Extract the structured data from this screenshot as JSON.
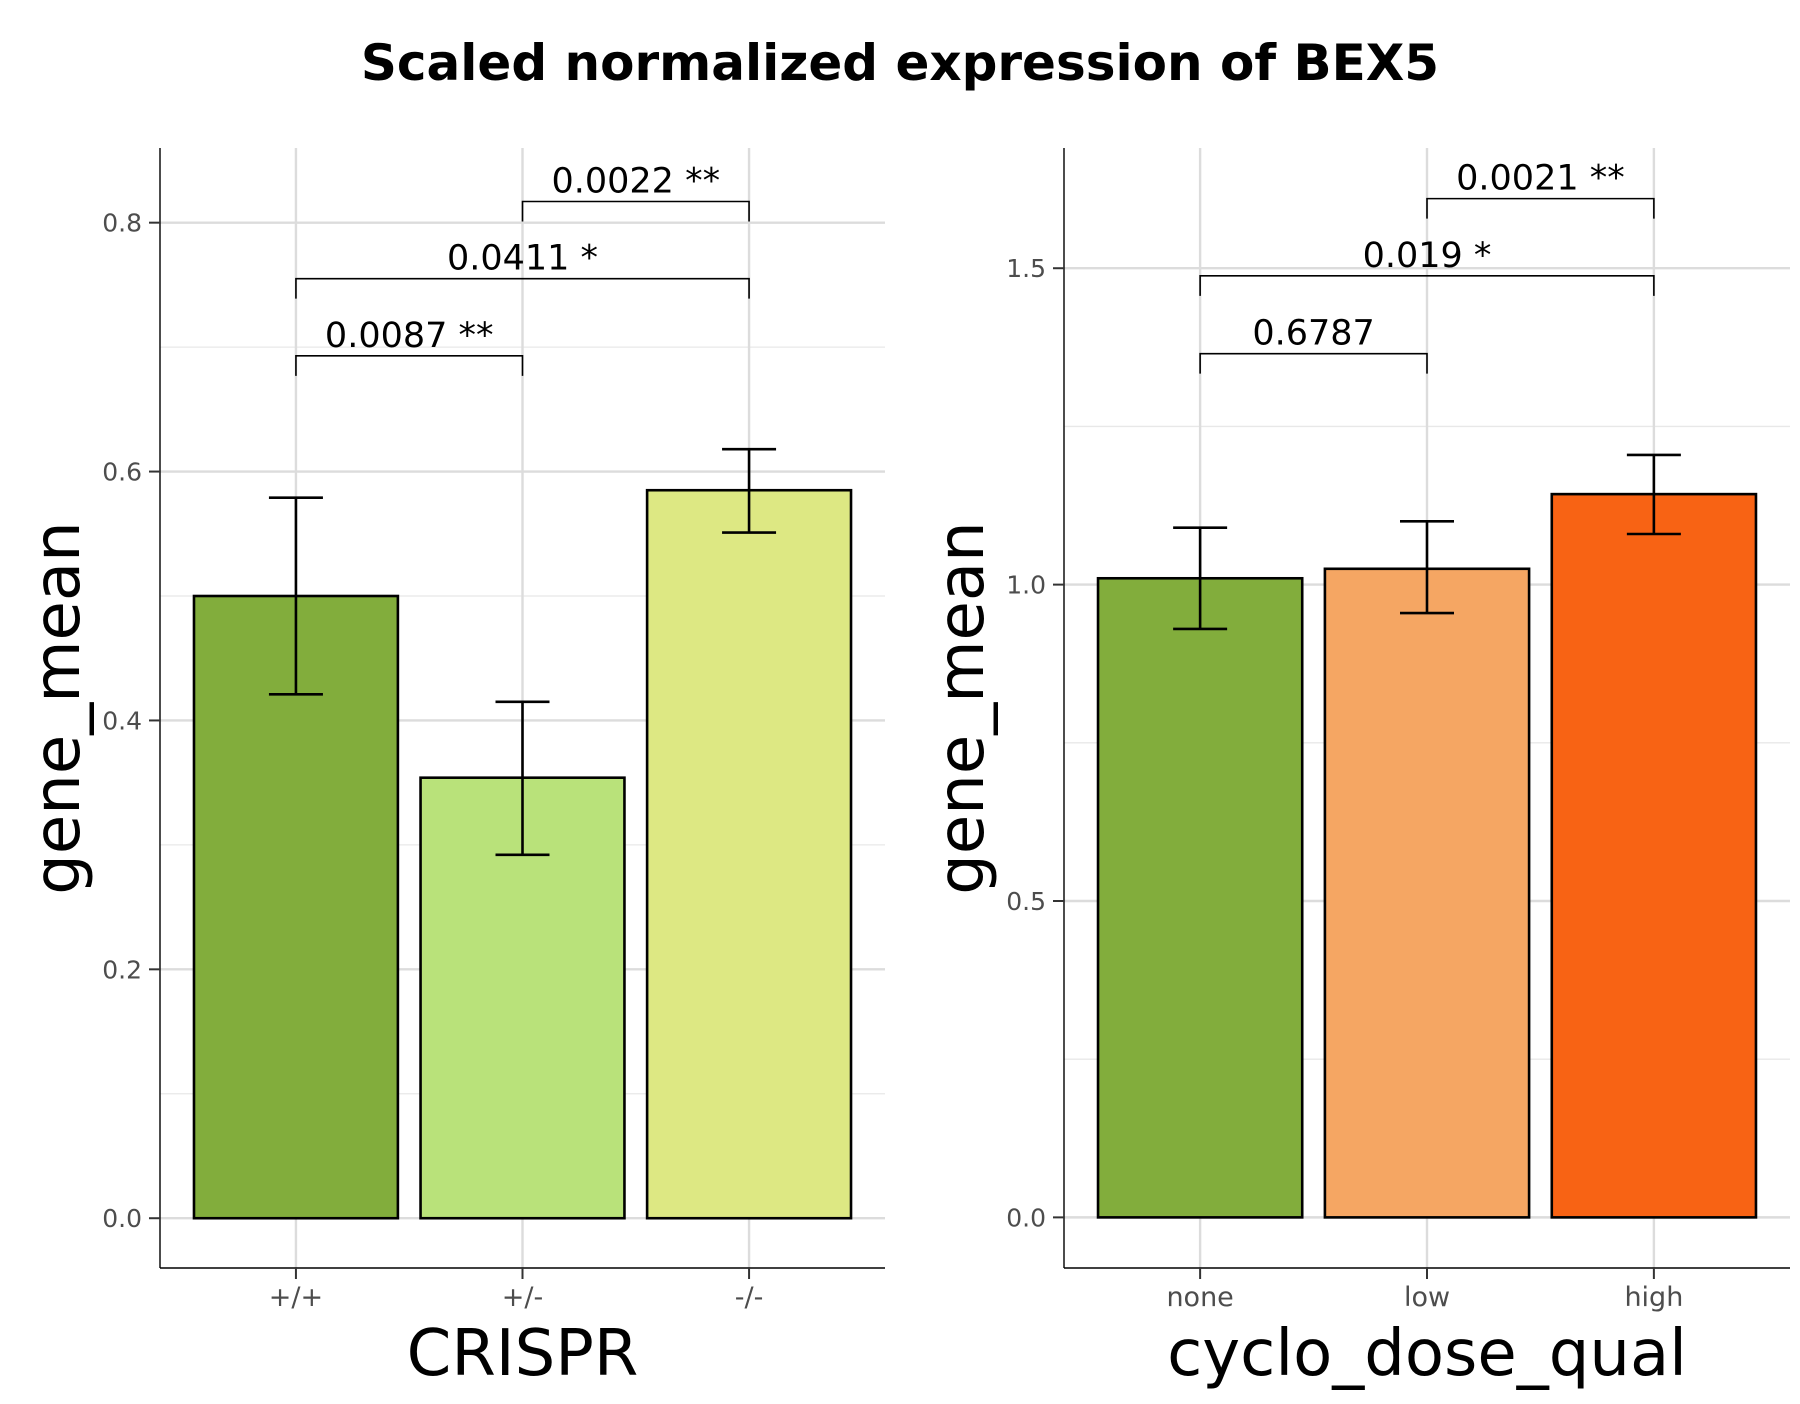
{
  "title": "Scaled normalized expression of BEX5",
  "chart_data": [
    {
      "type": "bar",
      "xlabel": "CRISPR",
      "ylabel": "gene_mean",
      "categories": [
        "+/+",
        "+/-",
        "-/-"
      ],
      "values": [
        0.5,
        0.354,
        0.585
      ],
      "error_low": [
        0.421,
        0.292,
        0.551
      ],
      "error_high": [
        0.579,
        0.415,
        0.618
      ],
      "colors": [
        "#82AD3C",
        "#B9E27A",
        "#DDE883"
      ],
      "ylim": [
        -0.04,
        0.86
      ],
      "yticks": [
        0.0,
        0.2,
        0.4,
        0.6,
        0.8
      ],
      "ytick_labels": [
        "0.0",
        "0.2",
        "0.4",
        "0.6",
        "0.8"
      ],
      "grid": true,
      "comparisons": [
        {
          "from": 0,
          "to": 1,
          "y": 0.693,
          "label": "0.0087 **"
        },
        {
          "from": 0,
          "to": 2,
          "y": 0.755,
          "label": "0.0411 *"
        },
        {
          "from": 1,
          "to": 2,
          "y": 0.817,
          "label": "0.0022 **"
        }
      ]
    },
    {
      "type": "bar",
      "xlabel": "cyclo_dose_qual",
      "ylabel": "gene_mean",
      "categories": [
        "none",
        "low",
        "high"
      ],
      "values": [
        1.01,
        1.025,
        1.143
      ],
      "error_low": [
        0.93,
        0.955,
        1.08
      ],
      "error_high": [
        1.09,
        1.1,
        1.205
      ],
      "colors": [
        "#82AD3C",
        "#F5A663",
        "#F86314"
      ],
      "ylim": [
        -0.08,
        1.69
      ],
      "yticks": [
        0.0,
        0.5,
        1.0,
        1.5
      ],
      "ytick_labels": [
        "0.0",
        "0.5",
        "1.0",
        "1.5"
      ],
      "grid": true,
      "comparisons": [
        {
          "from": 0,
          "to": 1,
          "y": 1.365,
          "label": "0.6787"
        },
        {
          "from": 0,
          "to": 2,
          "y": 1.488,
          "label": "0.019 *"
        },
        {
          "from": 1,
          "to": 2,
          "y": 1.61,
          "label": "0.0021 **"
        }
      ]
    }
  ]
}
